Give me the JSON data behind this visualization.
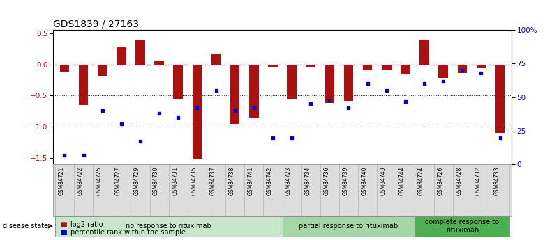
{
  "title": "GDS1839 / 27163",
  "samples": [
    "GSM84721",
    "GSM84722",
    "GSM84725",
    "GSM84727",
    "GSM84729",
    "GSM84730",
    "GSM84731",
    "GSM84735",
    "GSM84737",
    "GSM84738",
    "GSM84741",
    "GSM84742",
    "GSM84723",
    "GSM84734",
    "GSM84736",
    "GSM84739",
    "GSM84740",
    "GSM84743",
    "GSM84744",
    "GSM84724",
    "GSM84726",
    "GSM84728",
    "GSM84732",
    "GSM84733"
  ],
  "log2_ratio": [
    -0.12,
    -0.65,
    -0.18,
    0.28,
    0.38,
    0.05,
    -0.55,
    -1.52,
    0.17,
    -0.95,
    -0.85,
    -0.04,
    -0.55,
    -0.04,
    -0.62,
    -0.58,
    -0.08,
    -0.08,
    -0.16,
    0.38,
    -0.22,
    -0.14,
    -0.06,
    -1.1
  ],
  "percentile": [
    7,
    7,
    40,
    30,
    17,
    38,
    35,
    42,
    55,
    40,
    42,
    20,
    20,
    45,
    48,
    42,
    60,
    55,
    47,
    60,
    62,
    70,
    68,
    20
  ],
  "groups": [
    {
      "label": "no response to rituximab",
      "start": 0,
      "end": 12,
      "color": "#c8e6c9"
    },
    {
      "label": "partial response to rituximab",
      "start": 12,
      "end": 19,
      "color": "#a5d6a7"
    },
    {
      "label": "complete response to\nrituximab",
      "start": 19,
      "end": 24,
      "color": "#4caf50"
    }
  ],
  "ylim_left": [
    -1.6,
    0.55
  ],
  "ylim_right": [
    0,
    100
  ],
  "bar_color": "#aa1111",
  "point_color": "#0000cc",
  "hline_color": "#cc2200",
  "dotted_color": "#111111",
  "background_color": "#ffffff",
  "title_fontsize": 10,
  "tick_fontsize": 7.5,
  "bar_width": 0.5,
  "label_fontsize": 5.5,
  "group_fontsize": 7,
  "legend_fontsize": 7
}
